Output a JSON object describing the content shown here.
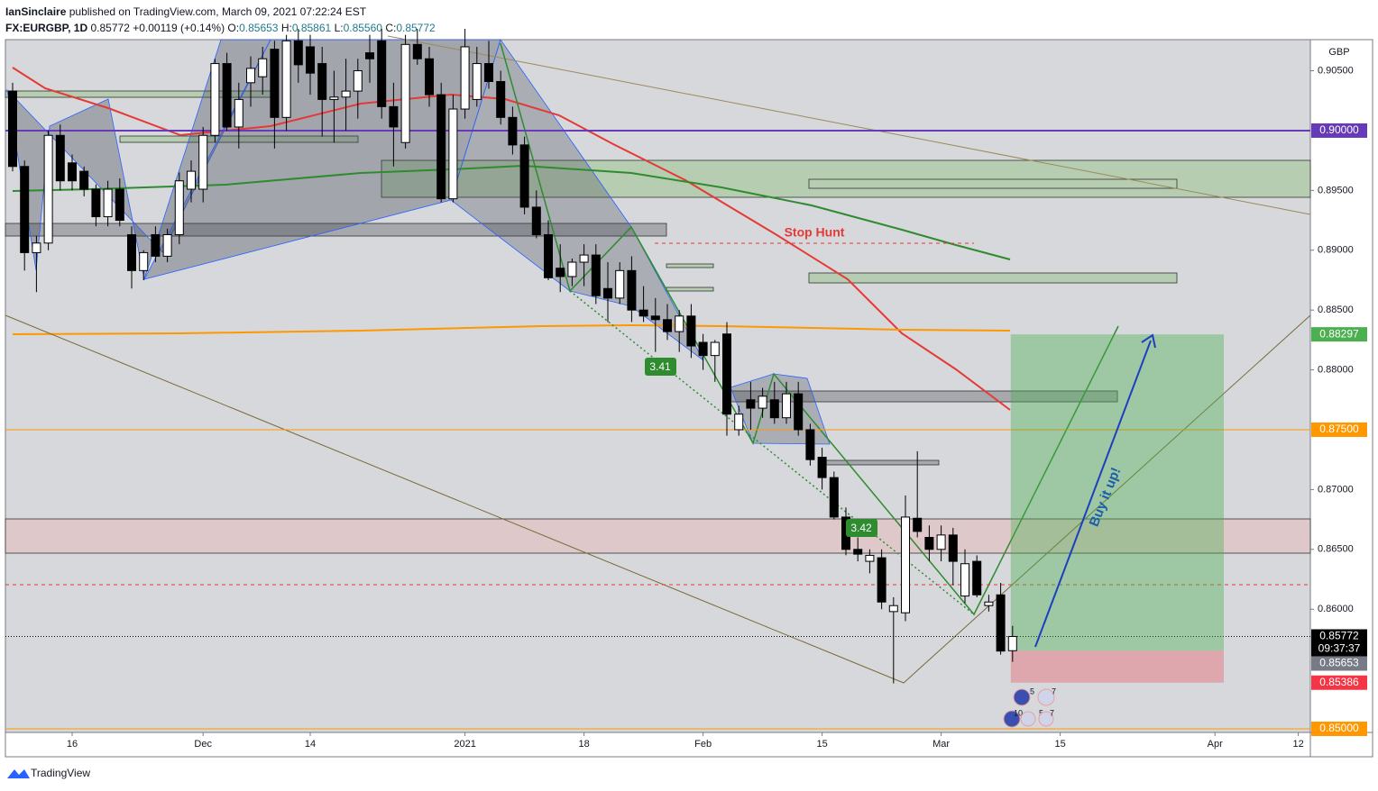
{
  "header": {
    "author": "IanSinclaire",
    "published": "published on TradingView.com, March 09, 2021 07:22:24 EST",
    "symbol": "FX:EURGBP, 1D",
    "price": "0.85772",
    "change": "+0.00119 (+0.14%)",
    "ohlc": [
      {
        "label": "O:",
        "value": "0.85653"
      },
      {
        "label": "H:",
        "value": "0.85861"
      },
      {
        "label": "L:",
        "value": "0.85560"
      },
      {
        "label": "C:",
        "value": "0.85772"
      }
    ]
  },
  "chart_data": {
    "type": "candlestick",
    "currency": "GBP",
    "up_color": "#ffffff",
    "down_color": "#000000",
    "x": [
      "2020-11-09",
      "2020-11-10",
      "2020-11-11",
      "2020-11-12",
      "2020-11-13",
      "2020-11-16",
      "2020-11-17",
      "2020-11-18",
      "2020-11-19",
      "2020-11-20",
      "2020-11-23",
      "2020-11-24",
      "2020-11-25",
      "2020-11-26",
      "2020-11-27",
      "2020-11-30",
      "2020-12-01",
      "2020-12-02",
      "2020-12-03",
      "2020-12-04",
      "2020-12-07",
      "2020-12-08",
      "2020-12-09",
      "2020-12-10",
      "2020-12-11",
      "2020-12-14",
      "2020-12-15",
      "2020-12-16",
      "2020-12-17",
      "2020-12-18",
      "2020-12-21",
      "2020-12-22",
      "2020-12-23",
      "2020-12-24",
      "2020-12-28",
      "2020-12-29",
      "2020-12-30",
      "2020-12-31",
      "2021-01-04",
      "2021-01-05",
      "2021-01-06",
      "2021-01-07",
      "2021-01-08",
      "2021-01-11",
      "2021-01-12",
      "2021-01-13",
      "2021-01-14",
      "2021-01-15",
      "2021-01-18",
      "2021-01-19",
      "2021-01-20",
      "2021-01-21",
      "2021-01-22",
      "2021-01-25",
      "2021-01-26",
      "2021-01-27",
      "2021-01-28",
      "2021-01-29",
      "2021-02-01",
      "2021-02-02",
      "2021-02-03",
      "2021-02-04",
      "2021-02-05",
      "2021-02-08",
      "2021-02-09",
      "2021-02-10",
      "2021-02-11",
      "2021-02-12",
      "2021-02-15",
      "2021-02-16",
      "2021-02-17",
      "2021-02-18",
      "2021-02-19",
      "2021-02-22",
      "2021-02-23",
      "2021-02-24",
      "2021-02-25",
      "2021-02-26",
      "2021-03-01",
      "2021-03-02",
      "2021-03-03",
      "2021-03-04",
      "2021-03-05",
      "2021-03-08",
      "2021-03-09"
    ],
    "open": [
      0.9033,
      0.897,
      0.8898,
      0.8906,
      0.8996,
      0.8973,
      0.8966,
      0.8951,
      0.8928,
      0.8951,
      0.8913,
      0.8883,
      0.8913,
      0.8895,
      0.8913,
      0.8951,
      0.8951,
      0.8996,
      0.9056,
      0.9003,
      0.904,
      0.9045,
      0.9068,
      0.9011,
      0.9075,
      0.907,
      0.9056,
      0.9026,
      0.9028,
      0.9033,
      0.9065,
      0.9075,
      0.902,
      0.899,
      0.9072,
      0.906,
      0.903,
      0.8943,
      0.9018,
      0.9026,
      0.9056,
      0.9041,
      0.9011,
      0.8988,
      0.8936,
      0.8913,
      0.8885,
      0.8878,
      0.889,
      0.8896,
      0.8868,
      0.886,
      0.8883,
      0.885,
      0.8845,
      0.8842,
      0.8832,
      0.8845,
      0.8823,
      0.8812,
      0.883,
      0.875,
      0.8775,
      0.8768,
      0.8775,
      0.876,
      0.878,
      0.875,
      0.8727,
      0.871,
      0.8677,
      0.865,
      0.864,
      0.8643,
      0.8598,
      0.8597,
      0.8676,
      0.866,
      0.865,
      0.8662,
      0.8611,
      0.864,
      0.8603,
      0.8612,
      0.85653
    ],
    "high": [
      0.904,
      0.8975,
      0.8912,
      0.9,
      0.9005,
      0.898,
      0.897,
      0.8955,
      0.8958,
      0.896,
      0.892,
      0.89,
      0.892,
      0.8918,
      0.8965,
      0.8975,
      0.9003,
      0.906,
      0.9065,
      0.904,
      0.9062,
      0.907,
      0.9075,
      0.908,
      0.9085,
      0.908,
      0.907,
      0.905,
      0.906,
      0.906,
      0.908,
      0.9085,
      0.904,
      0.908,
      0.9085,
      0.907,
      0.904,
      0.903,
      0.9085,
      0.907,
      0.9075,
      0.905,
      0.902,
      0.8995,
      0.895,
      0.8925,
      0.8905,
      0.8893,
      0.8905,
      0.8905,
      0.889,
      0.889,
      0.8895,
      0.887,
      0.886,
      0.8855,
      0.885,
      0.8855,
      0.883,
      0.8825,
      0.884,
      0.877,
      0.879,
      0.8785,
      0.879,
      0.879,
      0.879,
      0.8755,
      0.8735,
      0.8715,
      0.8685,
      0.866,
      0.865,
      0.865,
      0.861,
      0.8695,
      0.8732,
      0.867,
      0.867,
      0.8668,
      0.865,
      0.8645,
      0.8612,
      0.8622,
      0.85861
    ],
    "low": [
      0.8966,
      0.8883,
      0.8865,
      0.89,
      0.895,
      0.895,
      0.8945,
      0.892,
      0.892,
      0.892,
      0.8868,
      0.8875,
      0.889,
      0.889,
      0.8905,
      0.894,
      0.894,
      0.899,
      0.9,
      0.8985,
      0.902,
      0.903,
      0.8985,
      0.9,
      0.904,
      0.903,
      0.8995,
      0.899,
      0.9,
      0.901,
      0.904,
      0.901,
      0.897,
      0.8985,
      0.9055,
      0.902,
      0.894,
      0.894,
      0.901,
      0.902,
      0.9035,
      0.9005,
      0.898,
      0.893,
      0.891,
      0.8875,
      0.8865,
      0.887,
      0.887,
      0.8855,
      0.884,
      0.8855,
      0.884,
      0.884,
      0.8815,
      0.8825,
      0.8815,
      0.881,
      0.88,
      0.879,
      0.8745,
      0.8745,
      0.875,
      0.876,
      0.8755,
      0.8755,
      0.8745,
      0.872,
      0.87,
      0.8675,
      0.8645,
      0.864,
      0.863,
      0.86,
      0.8538,
      0.859,
      0.866,
      0.864,
      0.864,
      0.862,
      0.8605,
      0.861,
      0.8598,
      0.8562,
      0.8556
    ],
    "close": [
      0.897,
      0.8898,
      0.8906,
      0.8996,
      0.8958,
      0.8958,
      0.8951,
      0.8928,
      0.8951,
      0.8925,
      0.8883,
      0.8898,
      0.8895,
      0.8913,
      0.8958,
      0.8966,
      0.8996,
      0.9056,
      0.9003,
      0.9026,
      0.9052,
      0.906,
      0.9011,
      0.9075,
      0.9055,
      0.9048,
      0.9026,
      0.9028,
      0.9033,
      0.905,
      0.906,
      0.902,
      0.9003,
      0.9072,
      0.906,
      0.903,
      0.8943,
      0.9018,
      0.907,
      0.9056,
      0.9041,
      0.9011,
      0.8988,
      0.8936,
      0.8913,
      0.8877,
      0.8878,
      0.889,
      0.8896,
      0.8862,
      0.886,
      0.8883,
      0.885,
      0.8845,
      0.8842,
      0.8832,
      0.8845,
      0.882,
      0.8812,
      0.8823,
      0.8763,
      0.8763,
      0.8768,
      0.8778,
      0.876,
      0.878,
      0.875,
      0.8725,
      0.871,
      0.8677,
      0.865,
      0.8646,
      0.8645,
      0.8606,
      0.8603,
      0.8677,
      0.8665,
      0.865,
      0.8662,
      0.864,
      0.8638,
      0.8612,
      0.8606,
      0.8565,
      0.85772
    ],
    "ylim": [
      0.8497,
      0.9076
    ],
    "yticks": [
      {
        "value": 0.905,
        "label": "0.90500"
      },
      {
        "value": 0.895,
        "label": "0.89500"
      },
      {
        "value": 0.89,
        "label": "0.89000"
      },
      {
        "value": 0.885,
        "label": "0.88500"
      },
      {
        "value": 0.88,
        "label": "0.88000"
      },
      {
        "value": 0.87,
        "label": "0.87000"
      },
      {
        "value": 0.865,
        "label": "0.86500"
      },
      {
        "value": 0.86,
        "label": "0.86000"
      }
    ],
    "xticks": [
      {
        "value": "2020-11-16",
        "label": "16"
      },
      {
        "value": "2020-12-01",
        "label": "Dec"
      },
      {
        "value": "2020-12-14",
        "label": "14"
      },
      {
        "value": "2021-01-04",
        "label": "2021"
      },
      {
        "value": "2021-01-18",
        "label": "18"
      },
      {
        "value": "2021-02-01",
        "label": "Feb"
      },
      {
        "value": "2021-02-15",
        "label": "15"
      },
      {
        "value": "2021-03-01",
        "label": "Mar"
      },
      {
        "value": "2021-03-15",
        "label": "15"
      },
      {
        "value": "2021-04-01",
        "label": "Apr"
      },
      {
        "value": "2021-04-12",
        "label": "12"
      }
    ],
    "price_labels": [
      {
        "value": 0.9,
        "label": "0.90000",
        "color": "#673ab7",
        "line": true
      },
      {
        "value": 0.88297,
        "label": "0.88297",
        "color": "#4caf50",
        "line": false
      },
      {
        "value": 0.875,
        "label": "0.87500",
        "color": "#ff9800",
        "line": true
      },
      {
        "value": 0.85772,
        "label": "0.85772",
        "color": "#000000",
        "line": false
      },
      {
        "value": 0.85653,
        "label": "0.85653",
        "color": "#787b86",
        "line": false
      },
      {
        "value": 0.85386,
        "label": "0.85386",
        "color": "#f23645",
        "line": false
      },
      {
        "value": 0.85,
        "label": "0.85000",
        "color": "#ff9800",
        "line": true
      }
    ],
    "countdown": "09:37:37",
    "annotations": {
      "stop_hunt": "Stop Hunt",
      "buy": "Buy it up!",
      "label_1": "3.41",
      "label_2": "3.42"
    },
    "events": [
      "5",
      "7",
      "10",
      "5",
      "7"
    ]
  },
  "footer": {
    "brand": "TradingView"
  }
}
